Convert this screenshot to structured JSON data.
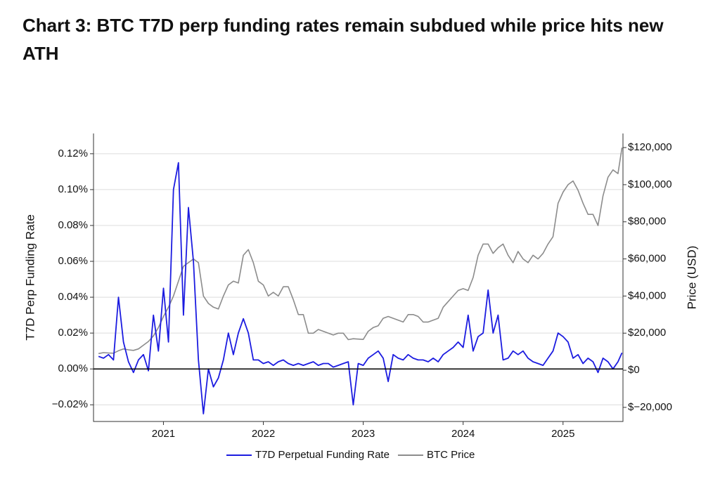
{
  "chart_data": {
    "type": "line",
    "title": "Chart 3: BTC T7D perp funding rates remain subdued while price hits new ATH",
    "y_label": "T7D Perp Funding Rate",
    "y2_label": "Price (USD)",
    "x": [
      2020.35,
      2020.4,
      2020.45,
      2020.5,
      2020.55,
      2020.6,
      2020.65,
      2020.7,
      2020.75,
      2020.8,
      2020.85,
      2020.9,
      2020.95,
      2021.0,
      2021.05,
      2021.1,
      2021.15,
      2021.2,
      2021.25,
      2021.3,
      2021.35,
      2021.4,
      2021.45,
      2021.5,
      2021.55,
      2021.6,
      2021.65,
      2021.7,
      2021.75,
      2021.8,
      2021.85,
      2021.9,
      2021.95,
      2022.0,
      2022.05,
      2022.1,
      2022.15,
      2022.2,
      2022.25,
      2022.3,
      2022.35,
      2022.4,
      2022.45,
      2022.5,
      2022.55,
      2022.6,
      2022.65,
      2022.7,
      2022.75,
      2022.8,
      2022.85,
      2022.9,
      2022.95,
      2023.0,
      2023.05,
      2023.1,
      2023.15,
      2023.2,
      2023.25,
      2023.3,
      2023.35,
      2023.4,
      2023.45,
      2023.5,
      2023.55,
      2023.6,
      2023.65,
      2023.7,
      2023.75,
      2023.8,
      2023.85,
      2023.9,
      2023.95,
      2024.0,
      2024.05,
      2024.1,
      2024.15,
      2024.2,
      2024.25,
      2024.3,
      2024.35,
      2024.4,
      2024.45,
      2024.5,
      2024.55,
      2024.6,
      2024.65,
      2024.7,
      2024.75,
      2024.8,
      2024.85,
      2024.9,
      2024.95,
      2025.0,
      2025.05,
      2025.1,
      2025.15,
      2025.2,
      2025.25,
      2025.3,
      2025.35,
      2025.4,
      2025.45,
      2025.5,
      2025.55,
      2025.59
    ],
    "series": [
      {
        "name": "T7D Perpetual Funding Rate",
        "color": "#1c1ce0",
        "axis": "y",
        "values": [
          0.007,
          0.006,
          0.008,
          0.005,
          0.04,
          0.015,
          0.004,
          -0.002,
          0.005,
          0.008,
          -0.001,
          0.03,
          0.01,
          0.045,
          0.015,
          0.1,
          0.115,
          0.03,
          0.09,
          0.06,
          0.005,
          -0.025,
          0.0,
          -0.01,
          -0.005,
          0.005,
          0.02,
          0.008,
          0.02,
          0.028,
          0.02,
          0.005,
          0.005,
          0.003,
          0.004,
          0.002,
          0.004,
          0.005,
          0.003,
          0.002,
          0.003,
          0.002,
          0.003,
          0.004,
          0.002,
          0.003,
          0.003,
          0.001,
          0.002,
          0.003,
          0.004,
          -0.02,
          0.003,
          0.002,
          0.006,
          0.008,
          0.01,
          0.006,
          -0.007,
          0.008,
          0.006,
          0.005,
          0.008,
          0.006,
          0.005,
          0.005,
          0.004,
          0.006,
          0.004,
          0.008,
          0.01,
          0.012,
          0.015,
          0.012,
          0.03,
          0.01,
          0.018,
          0.02,
          0.044,
          0.02,
          0.03,
          0.005,
          0.006,
          0.01,
          0.008,
          0.01,
          0.006,
          0.004,
          0.003,
          0.002,
          0.006,
          0.01,
          0.02,
          0.018,
          0.015,
          0.006,
          0.008,
          0.003,
          0.006,
          0.004,
          -0.002,
          0.006,
          0.004,
          0.0,
          0.004,
          0.009
        ]
      },
      {
        "name": "BTC Price",
        "color": "#8c8c8c",
        "axis": "y2",
        "values": [
          9000,
          9500,
          9300,
          9200,
          10500,
          11500,
          11000,
          10700,
          11500,
          13500,
          15500,
          18500,
          23000,
          29000,
          34000,
          40000,
          48000,
          56000,
          58000,
          60000,
          58000,
          40000,
          36000,
          34000,
          33000,
          40000,
          46000,
          48000,
          47000,
          62000,
          65000,
          58000,
          48000,
          46000,
          40000,
          42000,
          40000,
          45000,
          45000,
          38000,
          30000,
          30000,
          20000,
          20000,
          22000,
          21000,
          20000,
          19000,
          20000,
          20000,
          16500,
          17000,
          16800,
          16600,
          21000,
          23000,
          24000,
          28000,
          29000,
          28000,
          27000,
          26000,
          30000,
          30000,
          29000,
          26000,
          26000,
          27000,
          28000,
          34000,
          37000,
          40000,
          43000,
          44000,
          43000,
          50000,
          62000,
          68000,
          68000,
          63000,
          66000,
          68000,
          62000,
          58000,
          64000,
          60000,
          58000,
          62000,
          60000,
          63000,
          68000,
          72000,
          90000,
          96000,
          100000,
          102000,
          97000,
          90000,
          84000,
          84000,
          78000,
          94000,
          104000,
          108000,
          106000,
          120000
        ]
      }
    ],
    "xlim": [
      2020.3,
      2025.6
    ],
    "xticks": [
      2021,
      2022,
      2023,
      2024,
      2025
    ],
    "ylim": [
      -0.0293,
      0.1313
    ],
    "yticks": [
      {
        "value": -0.02,
        "label": "−0.02%"
      },
      {
        "value": 0,
        "label": "0.00%"
      },
      {
        "value": 0.02,
        "label": "0.02%"
      },
      {
        "value": 0.04,
        "label": "0.04%"
      },
      {
        "value": 0.06,
        "label": "0.06%"
      },
      {
        "value": 0.08,
        "label": "0.08%"
      },
      {
        "value": 0.1,
        "label": "0.10%"
      },
      {
        "value": 0.12,
        "label": "0.12%"
      }
    ],
    "y2lim": [
      -27600,
      127600
    ],
    "y2ticks": [
      {
        "value": -20000,
        "label": "$−20,000"
      },
      {
        "value": 0,
        "label": "$0"
      },
      {
        "value": 20000,
        "label": "$20,000"
      },
      {
        "value": 40000,
        "label": "$40,000"
      },
      {
        "value": 60000,
        "label": "$60,000"
      },
      {
        "value": 80000,
        "label": "$80,000"
      },
      {
        "value": 100000,
        "label": "$100,000"
      },
      {
        "value": 120000,
        "label": "$120,000"
      }
    ],
    "grid": true,
    "legend": "bottom"
  }
}
